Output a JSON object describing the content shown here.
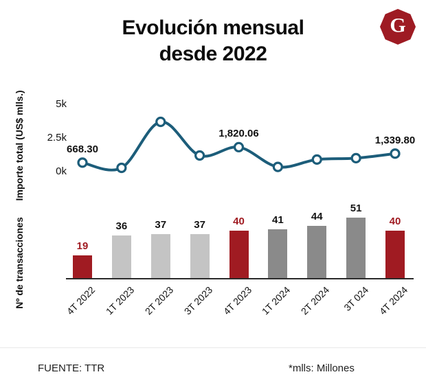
{
  "title": {
    "line1": "Evolución mensual",
    "line2": "desde 2022"
  },
  "logo": {
    "letter": "G",
    "color": "#9e1b23"
  },
  "colors": {
    "line": "#1c5d7a",
    "red": "#a01b22",
    "light_gray": "#c4c4c4",
    "dark_gray": "#8a8a8a",
    "text": "#141414"
  },
  "chart_data": [
    {
      "type": "line",
      "ylabel": "Importe total (US$ mlls.)",
      "categories": [
        "4T 2022",
        "1T 2023",
        "2T 2023",
        "3T 2023",
        "4T 2023",
        "1T 2024",
        "2T 2024",
        "3T 024",
        "4T 2024"
      ],
      "values": [
        668.3,
        280,
        3700,
        1200,
        1820.06,
        350,
        900,
        1000,
        1339.8
      ],
      "ylim": [
        0,
        5000
      ],
      "yticks": [
        {
          "label": "0k",
          "value": 0
        },
        {
          "label": "2.5k",
          "value": 2500
        },
        {
          "label": "5k",
          "value": 5000
        }
      ],
      "point_labels": [
        {
          "index": 0,
          "text": "668.30"
        },
        {
          "index": 4,
          "text": "1,820.06"
        },
        {
          "index": 8,
          "text": "1,339.80"
        }
      ],
      "grid": false,
      "legend": false
    },
    {
      "type": "bar",
      "ylabel": "Nº de transacciones",
      "categories": [
        "4T 2022",
        "1T 2023",
        "2T 2023",
        "3T 2023",
        "4T 2023",
        "1T 2024",
        "2T 2024",
        "3T 024",
        "4T 2024"
      ],
      "values": [
        19,
        36,
        37,
        37,
        40,
        41,
        44,
        51,
        40
      ],
      "bar_colors": [
        "red",
        "light_gray",
        "light_gray",
        "light_gray",
        "red",
        "dark_gray",
        "dark_gray",
        "dark_gray",
        "red"
      ],
      "value_label_colors": [
        "red",
        "text",
        "text",
        "text",
        "red",
        "text",
        "text",
        "text",
        "red"
      ]
    }
  ],
  "footer": {
    "source": "FUENTE: TTR",
    "note": "*mlls: Millones"
  }
}
